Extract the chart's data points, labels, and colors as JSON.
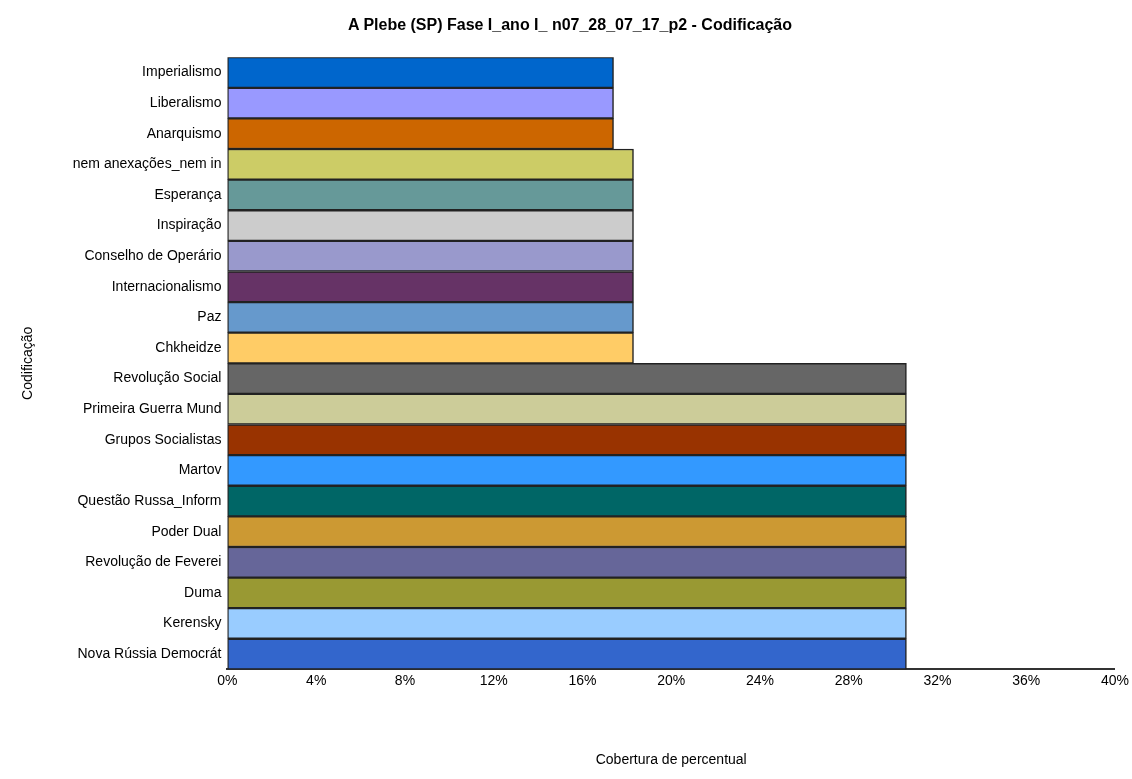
{
  "chart_data": {
    "type": "bar",
    "orientation": "horizontal",
    "title": "A Plebe (SP) Fase I_ano I_ n07_28_07_17_p2 - Codificação",
    "xlabel": "Cobertura de percentual",
    "ylabel": "Codificação",
    "categories": [
      "Imperialismo",
      "Liberalismo",
      "Anarquismo",
      "nem anexações_nem in",
      "Esperança",
      "Inspiração",
      "Conselho de Operário",
      "Internacionalismo",
      "Paz",
      "Chkheidze",
      "Revolução Social",
      "Primeira Guerra Mund",
      "Grupos Socialistas",
      "Martov",
      "Questão Russa_Inform",
      "Poder Dual",
      "Revolução de Feverei",
      "Duma",
      "Kerensky",
      "Nova Rússia Democrát"
    ],
    "values": [
      17.4,
      17.4,
      17.4,
      18.3,
      18.3,
      18.3,
      18.3,
      18.3,
      18.3,
      18.3,
      30.6,
      30.6,
      30.6,
      30.6,
      30.6,
      30.6,
      30.6,
      30.6,
      30.6,
      30.6
    ],
    "colors": [
      "#0066cc",
      "#9999ff",
      "#cc6600",
      "#cccc66",
      "#669999",
      "#cccccc",
      "#9999cc",
      "#663366",
      "#6699cc",
      "#ffcc66",
      "#666666",
      "#cccc99",
      "#993300",
      "#3399ff",
      "#006666",
      "#cc9933",
      "#666699",
      "#999933",
      "#99ccff",
      "#3366cc"
    ],
    "xlim": [
      0,
      40
    ],
    "xticks": [
      {
        "value": 0,
        "label": "0%"
      },
      {
        "value": 4,
        "label": "4%"
      },
      {
        "value": 8,
        "label": "8%"
      },
      {
        "value": 12,
        "label": "12%"
      },
      {
        "value": 16,
        "label": "16%"
      },
      {
        "value": 20,
        "label": "20%"
      },
      {
        "value": 24,
        "label": "24%"
      },
      {
        "value": 28,
        "label": "28%"
      },
      {
        "value": 32,
        "label": "32%"
      },
      {
        "value": 36,
        "label": "36%"
      },
      {
        "value": 40,
        "label": "40%"
      }
    ],
    "grid": false,
    "legend": false
  }
}
